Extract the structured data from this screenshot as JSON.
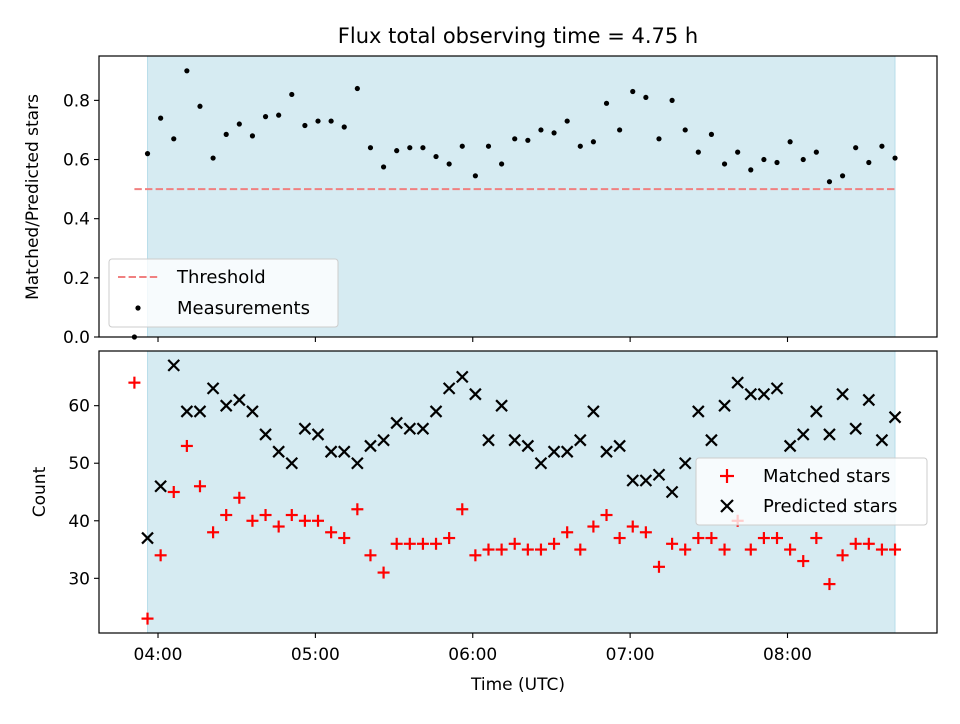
{
  "chart_data": {
    "type": "scatter",
    "title": "Flux total observing time = 4.75 h",
    "xlabel": "Time (UTC)",
    "x_ticks": [
      "04:00",
      "05:00",
      "06:00",
      "07:00",
      "08:00"
    ],
    "shaded_interval": {
      "start": "03:56",
      "end": "08:41",
      "color": "#add8e6"
    },
    "panels": [
      {
        "ylabel": "Matched/Predicted stars",
        "ylim": [
          0.0,
          0.95
        ],
        "y_ticks": [
          "0.0",
          "0.2",
          "0.4",
          "0.6",
          "0.8"
        ],
        "legend": {
          "placement": "lower-left",
          "entries": [
            "Threshold",
            "Measurements"
          ]
        },
        "threshold": {
          "name": "Threshold",
          "value": 0.5,
          "x_start": "03:51",
          "x_end": "08:41",
          "color": "#f08080",
          "style": "dashed"
        },
        "series": [
          {
            "name": "Measurements",
            "marker": "dot",
            "color": "#000000",
            "x": [
              "03:51",
              "03:56",
              "04:01",
              "04:06",
              "04:11",
              "04:16",
              "04:21",
              "04:26",
              "04:31",
              "04:36",
              "04:41",
              "04:46",
              "04:51",
              "04:56",
              "05:01",
              "05:06",
              "05:11",
              "05:16",
              "05:21",
              "05:26",
              "05:31",
              "05:36",
              "05:41",
              "05:46",
              "05:51",
              "05:56",
              "06:01",
              "06:06",
              "06:11",
              "06:16",
              "06:21",
              "06:26",
              "06:31",
              "06:36",
              "06:41",
              "06:46",
              "06:51",
              "06:56",
              "07:01",
              "07:06",
              "07:11",
              "07:16",
              "07:21",
              "07:26",
              "07:31",
              "07:36",
              "07:41",
              "07:46",
              "07:51",
              "07:56",
              "08:01",
              "08:06",
              "08:11",
              "08:16",
              "08:21",
              "08:26",
              "08:31",
              "08:36",
              "08:41"
            ],
            "y": [
              0.0,
              0.62,
              0.74,
              0.67,
              0.9,
              0.78,
              0.605,
              0.685,
              0.72,
              0.68,
              0.745,
              0.75,
              0.82,
              0.715,
              0.73,
              0.73,
              0.71,
              0.84,
              0.64,
              0.575,
              0.63,
              0.64,
              0.64,
              0.61,
              0.585,
              0.645,
              0.545,
              0.645,
              0.585,
              0.67,
              0.665,
              0.7,
              0.69,
              0.73,
              0.645,
              0.66,
              0.79,
              0.7,
              0.83,
              0.81,
              0.67,
              0.8,
              0.7,
              0.625,
              0.685,
              0.585,
              0.625,
              0.565,
              0.6,
              0.59,
              0.66,
              0.6,
              0.625,
              0.525,
              0.545,
              0.64,
              0.59,
              0.645,
              0.605
            ]
          }
        ]
      },
      {
        "ylabel": "Count",
        "ylim": [
          20.5,
          69.5
        ],
        "y_ticks": [
          "30",
          "40",
          "50",
          "60"
        ],
        "legend": {
          "placement": "center-right",
          "entries": [
            "Matched stars",
            "Predicted stars"
          ]
        },
        "series": [
          {
            "name": "Matched stars",
            "marker": "plus",
            "color": "#ff0000",
            "x": [
              "03:51",
              "03:56",
              "04:01",
              "04:06",
              "04:11",
              "04:16",
              "04:21",
              "04:26",
              "04:31",
              "04:36",
              "04:41",
              "04:46",
              "04:51",
              "04:56",
              "05:01",
              "05:06",
              "05:11",
              "05:16",
              "05:21",
              "05:26",
              "05:31",
              "05:36",
              "05:41",
              "05:46",
              "05:51",
              "05:56",
              "06:01",
              "06:06",
              "06:11",
              "06:16",
              "06:21",
              "06:26",
              "06:31",
              "06:36",
              "06:41",
              "06:46",
              "06:51",
              "06:56",
              "07:01",
              "07:06",
              "07:11",
              "07:16",
              "07:21",
              "07:26",
              "07:31",
              "07:36",
              "07:41",
              "07:46",
              "07:51",
              "07:56",
              "08:01",
              "08:06",
              "08:11",
              "08:16",
              "08:21",
              "08:26",
              "08:31",
              "08:36",
              "08:41"
            ],
            "y": [
              64,
              23,
              34,
              45,
              53,
              46,
              38,
              41,
              44,
              40,
              41,
              39,
              41,
              40,
              40,
              38,
              37,
              42,
              34,
              31,
              36,
              36,
              36,
              36,
              37,
              42,
              34,
              35,
              35,
              36,
              35,
              35,
              36,
              38,
              35,
              39,
              41,
              37,
              39,
              38,
              32,
              36,
              35,
              37,
              37,
              35,
              40,
              35,
              37,
              37,
              35,
              33,
              37,
              29,
              34,
              36,
              36,
              35,
              35
            ]
          },
          {
            "name": "Predicted stars",
            "marker": "x",
            "color": "#000000",
            "x": [
              "03:56",
              "04:01",
              "04:06",
              "04:11",
              "04:16",
              "04:21",
              "04:26",
              "04:31",
              "04:36",
              "04:41",
              "04:46",
              "04:51",
              "04:56",
              "05:01",
              "05:06",
              "05:11",
              "05:16",
              "05:21",
              "05:26",
              "05:31",
              "05:36",
              "05:41",
              "05:46",
              "05:51",
              "05:56",
              "06:01",
              "06:06",
              "06:11",
              "06:16",
              "06:21",
              "06:26",
              "06:31",
              "06:36",
              "06:41",
              "06:46",
              "06:51",
              "06:56",
              "07:01",
              "07:06",
              "07:11",
              "07:16",
              "07:21",
              "07:26",
              "07:31",
              "07:36",
              "07:41",
              "07:46",
              "07:51",
              "07:56",
              "08:01",
              "08:06",
              "08:11",
              "08:16",
              "08:21",
              "08:26",
              "08:31",
              "08:36",
              "08:41"
            ],
            "y": [
              37,
              46,
              67,
              59,
              59,
              63,
              60,
              61,
              59,
              55,
              52,
              50,
              56,
              55,
              52,
              52,
              50,
              53,
              54,
              57,
              56,
              56,
              59,
              63,
              65,
              62,
              54,
              60,
              54,
              53,
              50,
              52,
              52,
              54,
              59,
              52,
              53,
              47,
              47,
              48,
              45,
              50,
              59,
              54,
              60,
              64,
              62,
              62,
              63,
              53,
              55,
              59,
              55,
              62,
              56,
              61,
              54,
              58
            ]
          }
        ]
      }
    ]
  }
}
